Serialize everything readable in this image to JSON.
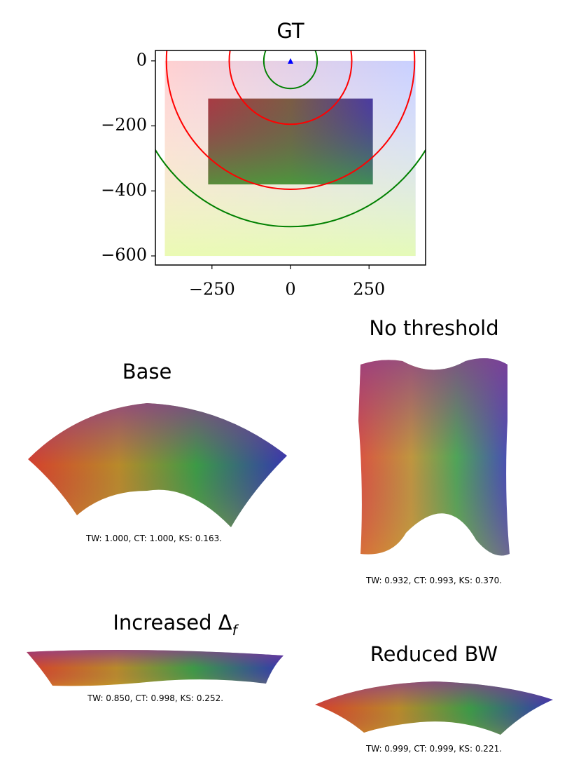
{
  "chart_data": [
    {
      "type": "region",
      "title": "GT",
      "xlim": [
        -430,
        430
      ],
      "ylim": [
        -628,
        32
      ],
      "xticks": [
        {
          "value": -250,
          "label": "−250"
        },
        0,
        250
      ],
      "yticks": [
        0,
        {
          "value": -200,
          "label": "−200"
        },
        {
          "value": -400,
          "label": "−400"
        },
        {
          "value": -600,
          "label": "−600"
        }
      ],
      "regions": [
        {
          "x": [
            -400,
            398
          ],
          "y": [
            -600,
            0
          ]
        },
        {
          "x": [
            -262,
            262
          ],
          "y": [
            -380,
            -116
          ]
        }
      ],
      "circles": [
        {
          "r": 85,
          "color": "green"
        },
        {
          "r": 195,
          "color": "red"
        },
        {
          "r": 395,
          "color": "red"
        },
        {
          "r": 510,
          "color": "green"
        }
      ],
      "origin_marker": {
        "x": 0,
        "y": 0,
        "color": "blue"
      }
    },
    {
      "type": "embedding",
      "title": "Base",
      "caption": "TW: 1.000, CT: 1.000, KS: 0.163."
    },
    {
      "type": "embedding",
      "title": "No threshold",
      "caption": "TW: 0.932, CT: 0.993, KS: 0.370."
    },
    {
      "type": "embedding",
      "title": "Increased Δ",
      "title_subscript": "f",
      "caption": "TW: 0.850, CT: 0.998, KS: 0.252."
    },
    {
      "type": "embedding",
      "title": "Reduced BW",
      "caption": "TW: 0.999, CT: 0.999, KS: 0.221."
    }
  ]
}
